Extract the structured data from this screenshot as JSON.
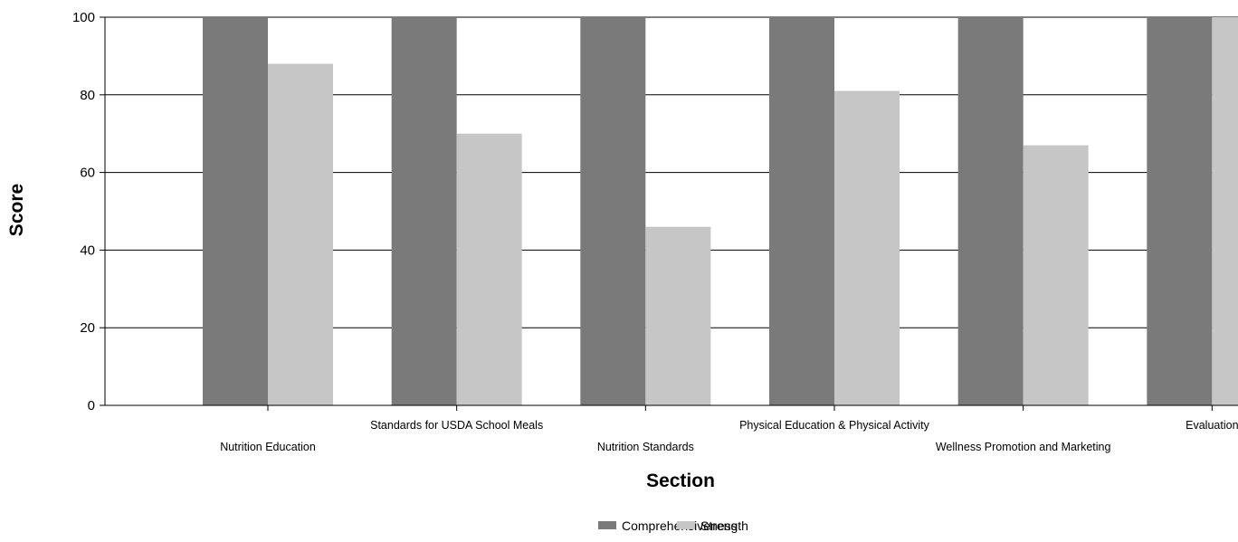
{
  "chart_data": {
    "type": "bar",
    "xlabel": "Section",
    "ylabel": "Score",
    "ylim": [
      0,
      100
    ],
    "yticks": [
      0,
      20,
      40,
      60,
      80,
      100
    ],
    "grid": true,
    "legend_position": "bottom",
    "categories": [
      "Nutrition Education",
      "Standards for USDA School Meals",
      "Nutrition Standards",
      "Physical Education & Physical Activity",
      "Wellness Promotion and Marketing",
      "Evaluation"
    ],
    "series": [
      {
        "name": "Comprehensiveness",
        "color": "#7a7a7a",
        "values": [
          100,
          100,
          100,
          100,
          100,
          100
        ]
      },
      {
        "name": "Strength",
        "color": "#c6c6c6",
        "values": [
          88,
          70,
          46,
          81,
          67,
          100
        ]
      }
    ]
  }
}
